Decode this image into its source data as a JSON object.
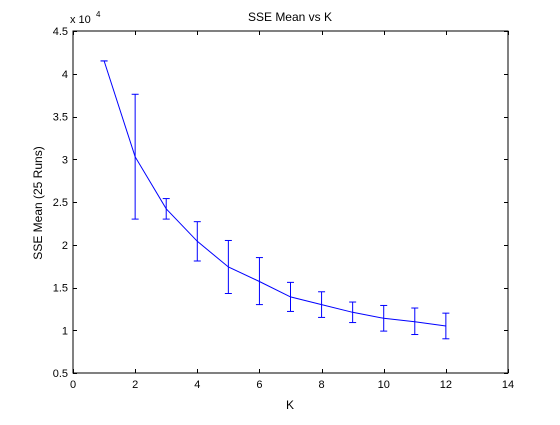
{
  "chart_data": {
    "type": "line",
    "title": "SSE Mean vs K",
    "xlabel": "K",
    "ylabel": "SSE Mean (25 Runs)",
    "y_exponent_base": "x 10",
    "y_exponent_power": "4",
    "xlim": [
      0,
      14
    ],
    "ylim": [
      0.5,
      4.5
    ],
    "xticks": [
      0,
      2,
      4,
      6,
      8,
      10,
      12,
      14
    ],
    "xtick_labels": [
      "0",
      "2",
      "4",
      "6",
      "8",
      "10",
      "12",
      "14"
    ],
    "yticks": [
      0.5,
      1,
      1.5,
      2,
      2.5,
      3,
      3.5,
      4,
      4.5
    ],
    "ytick_labels": [
      "0.5",
      "1",
      "1.5",
      "2",
      "2.5",
      "3",
      "3.5",
      "4",
      "4.5"
    ],
    "grid": false,
    "series": [
      {
        "color": "#0000ff",
        "x": [
          1,
          2,
          3,
          4,
          5,
          6,
          7,
          8,
          9,
          10,
          11,
          12
        ],
        "y": [
          4.15,
          3.03,
          2.42,
          2.04,
          1.74,
          1.57,
          1.39,
          1.3,
          1.21,
          1.14,
          1.1,
          1.05
        ],
        "err_low": [
          4.15,
          2.3,
          2.3,
          1.81,
          1.43,
          1.3,
          1.22,
          1.15,
          1.09,
          0.99,
          0.95,
          0.9
        ],
        "err_high": [
          4.15,
          3.76,
          2.54,
          2.27,
          2.05,
          1.85,
          1.56,
          1.45,
          1.33,
          1.29,
          1.26,
          1.2
        ]
      }
    ]
  }
}
